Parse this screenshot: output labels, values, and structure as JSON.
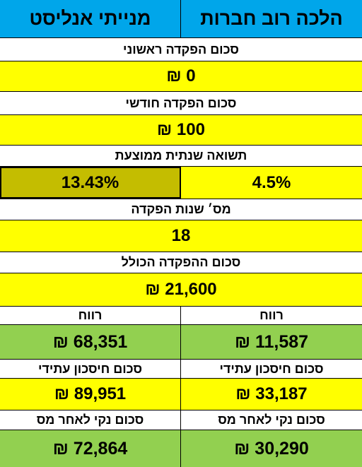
{
  "header": {
    "right_title": "הלכה רוב חברות",
    "left_title": "מנייתי אנליסט"
  },
  "rows": {
    "initial_deposit_label": "סכום הפקדה ראשוני",
    "initial_deposit_value": "0 ₪",
    "monthly_deposit_label": "סכום הפקדה חודשי",
    "monthly_deposit_value": "100 ₪",
    "avg_return_label": "תשואה שנתית ממוצעת",
    "avg_return_right": "4.5%",
    "avg_return_left": "13.43%",
    "years_label": "מס׳ שנות הפקדה",
    "years_value": "18",
    "total_deposit_label": "סכום ההפקדה הכולל",
    "total_deposit_value": "21,600 ₪"
  },
  "results": {
    "profit_label_right": "רווח",
    "profit_label_left": "רווח",
    "profit_right": "11,587 ₪",
    "profit_left": "68,351 ₪",
    "future_savings_label_right": "סכום חיסכון עתידי",
    "future_savings_label_left": "סכום חיסכון עתידי",
    "future_savings_right": "33,187 ₪",
    "future_savings_left": "89,951 ₪",
    "net_after_tax_label_right": "סכום נקי לאחר מס",
    "net_after_tax_label_left": "סכום נקי לאחר מס",
    "net_after_tax_right": "30,290 ₪",
    "net_after_tax_left": "72,864 ₪"
  },
  "colors": {
    "header": "#00a6ea",
    "value": "#ffff00",
    "result": "#92d050",
    "selected": "#c4bd00"
  }
}
